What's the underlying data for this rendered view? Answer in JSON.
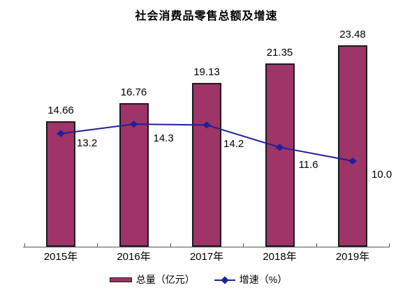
{
  "title": "社会消费品零售总额及增速",
  "chart_data": {
    "type": "bar+line",
    "title": "社会消费品零售总额及增速",
    "categories": [
      "2015年",
      "2016年",
      "2017年",
      "2018年",
      "2019年"
    ],
    "series": [
      {
        "name": "总量（亿元）",
        "type": "bar",
        "values": [
          14.66,
          16.76,
          19.13,
          21.35,
          23.48
        ],
        "labels": [
          "14.66",
          "16.76",
          "19.13",
          "21.35",
          "23.48"
        ],
        "color": "#9E3468",
        "border_color": "#1A1A1A"
      },
      {
        "name": "增速（%）",
        "type": "line",
        "values": [
          13.2,
          14.3,
          14.2,
          11.6,
          10.0
        ],
        "labels": [
          "13.2",
          "14.3",
          "14.2",
          "11.6",
          "10.0"
        ],
        "color": "#1F1F9C",
        "marker": "diamond"
      }
    ],
    "xlabel": "",
    "ylabel": "",
    "ylim": [
      0,
      25
    ],
    "grid": false,
    "y_axis_visible": false,
    "legend_position": "bottom"
  }
}
